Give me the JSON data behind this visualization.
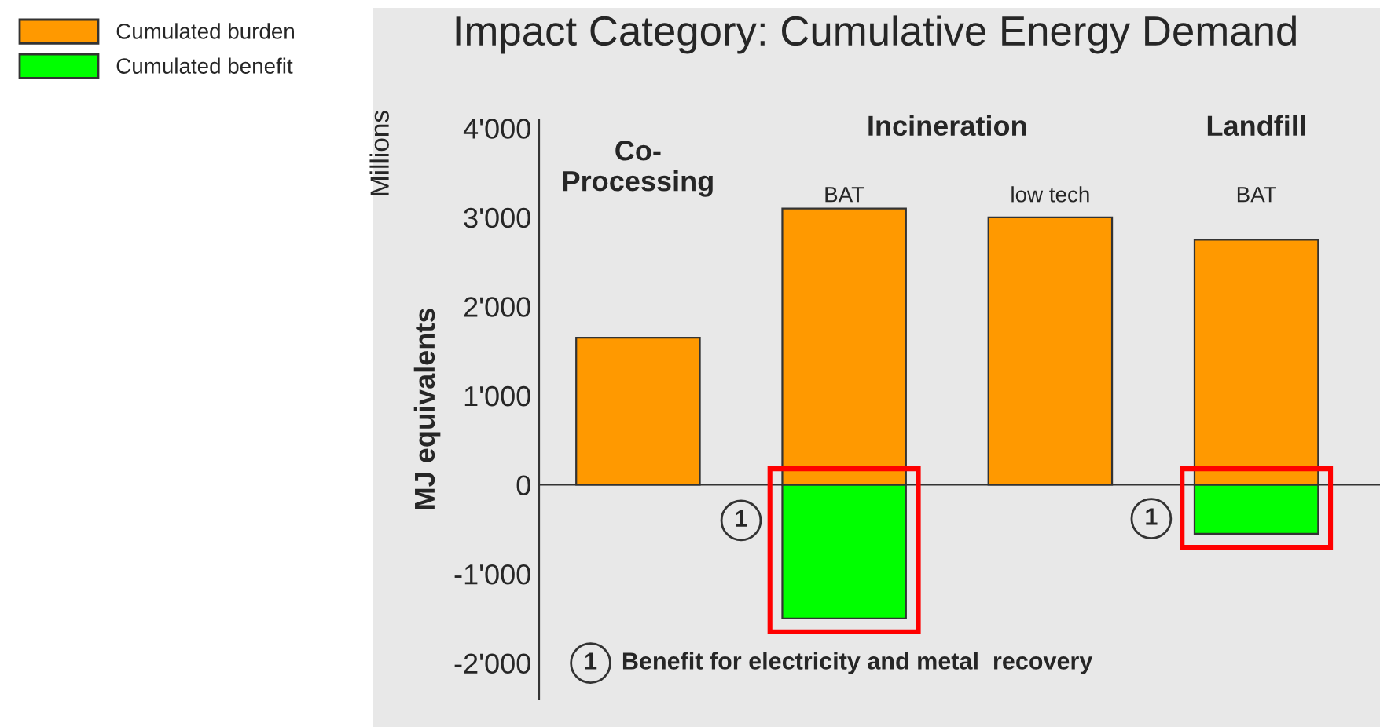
{
  "chart_data": {
    "type": "bar",
    "title": "Impact Category: Cumulative Energy Demand",
    "ylabel": "MJ equivalents",
    "categories": [
      null,
      "BAT",
      "low tech",
      "BAT"
    ],
    "series": [
      {
        "name": "Cumulated burden",
        "color": "#ff9900",
        "values": [
          1650,
          3100,
          3000,
          2750
        ]
      },
      {
        "name": "Cumulated benefit",
        "color": "#00ff00",
        "values": [
          null,
          -1500,
          null,
          -550
        ]
      }
    ],
    "ylim": [
      -2400,
      4100
    ],
    "yticks": [
      {
        "value": -2000,
        "label": "-2'000"
      },
      {
        "value": -1000,
        "label": "-1'000"
      },
      0,
      {
        "value": 1000,
        "label": "1'000"
      },
      {
        "value": 2000,
        "label": "2'000"
      },
      {
        "value": 3000,
        "label": "3'000"
      },
      {
        "value": 4000,
        "label": "4'000"
      }
    ],
    "annotations": [
      "Millions",
      "Co-\nProcessing",
      "Incineration",
      "Landfill",
      "1",
      "1",
      "1",
      "Benefit for electricity and metal  recovery"
    ],
    "stacked": true,
    "legend": "top left"
  }
}
